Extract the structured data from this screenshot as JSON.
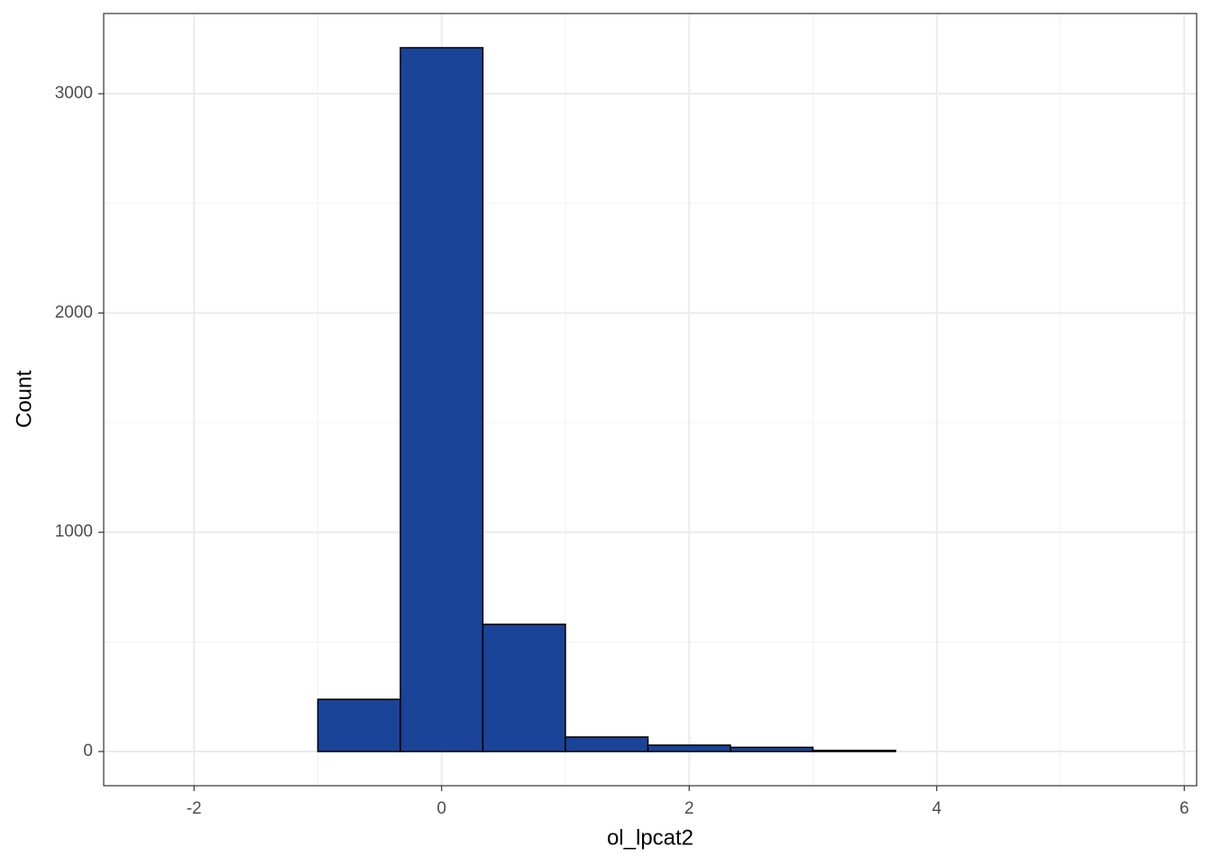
{
  "chart_data": {
    "type": "histogram",
    "x_label": "ol_lpcat2",
    "y_label": "Count",
    "bins": [
      -2.333,
      -1.667,
      -1.0,
      -0.333,
      0.333,
      1.0,
      1.667,
      2.333,
      3.0,
      3.667,
      4.333,
      5.0,
      5.667
    ],
    "values": [
      0,
      0,
      238,
      3210,
      580,
      66,
      29,
      19,
      5,
      0,
      0,
      0
    ],
    "color": "#1a4497",
    "edge_color": "#000000",
    "xlim": [
      -2.73,
      6.1
    ],
    "ylim": [
      -156,
      3366
    ],
    "xticks": [
      -2,
      0,
      2,
      4,
      6
    ],
    "yticks": [
      0,
      1000,
      2000,
      3000
    ],
    "x_minor_grid": [
      -1,
      1,
      3,
      5
    ],
    "y_minor_grid": [
      500,
      1500,
      2500
    ],
    "grid": true
  }
}
